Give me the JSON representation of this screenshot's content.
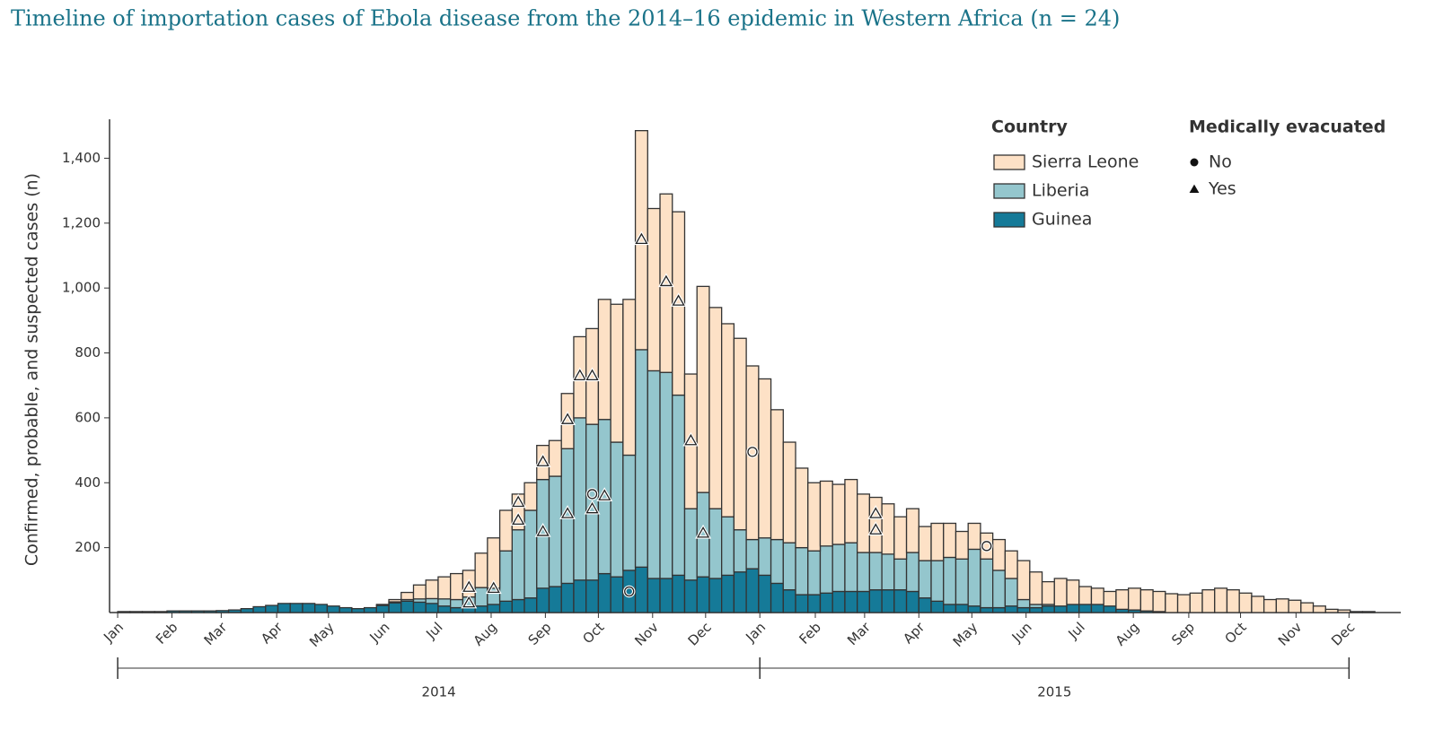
{
  "chart_data": {
    "type": "bar",
    "stacked": true,
    "title": "Timeline of importation cases of Ebola disease from the 2014–16 epidemic in Western Africa (n = 24)",
    "y_label": "Confirmed, probable, and suspected cases (n)",
    "legend_title": "Country",
    "x": [
      1,
      2,
      3,
      4,
      5,
      6,
      7,
      8,
      9,
      10,
      11,
      12,
      13,
      14,
      15,
      16,
      17,
      18,
      19,
      20,
      21,
      22,
      23,
      24,
      25,
      26,
      27,
      28,
      29,
      30,
      31,
      32,
      33,
      34,
      35,
      36,
      37,
      38,
      39,
      40,
      41,
      42,
      43,
      44,
      45,
      46,
      47,
      48,
      49,
      50,
      51,
      52,
      53,
      54,
      55,
      56,
      57,
      58,
      59,
      60,
      61,
      62,
      63,
      64,
      65,
      66,
      67,
      68,
      69,
      70,
      71,
      72,
      73,
      74,
      75,
      76,
      77,
      78,
      79,
      80,
      81,
      82,
      83,
      84,
      85,
      86,
      87,
      88,
      89,
      90,
      91,
      92,
      93,
      94,
      95,
      96,
      97,
      98,
      99,
      100,
      101,
      102
    ],
    "series": [
      {
        "name": "Guinea",
        "color": "#157a98",
        "values": [
          3,
          3,
          3,
          3,
          5,
          5,
          5,
          5,
          6,
          8,
          12,
          18,
          22,
          28,
          28,
          28,
          25,
          20,
          15,
          12,
          15,
          22,
          30,
          35,
          32,
          28,
          20,
          15,
          18,
          20,
          25,
          35,
          40,
          45,
          75,
          80,
          90,
          100,
          100,
          120,
          110,
          130,
          140,
          105,
          105,
          115,
          100,
          110,
          105,
          115,
          125,
          135,
          115,
          90,
          70,
          55,
          55,
          60,
          65,
          65,
          65,
          70,
          70,
          70,
          65,
          45,
          35,
          25,
          25,
          20,
          15,
          15,
          20,
          15,
          15,
          20,
          20,
          25,
          25,
          25,
          20,
          10,
          8,
          5,
          3,
          0,
          0,
          0,
          0,
          0,
          0,
          0,
          0,
          0,
          0,
          0,
          0,
          0,
          0,
          0,
          0,
          0
        ]
      },
      {
        "name": "Liberia",
        "color": "#94c6cd",
        "values": [
          0,
          0,
          0,
          0,
          0,
          0,
          0,
          0,
          0,
          0,
          0,
          0,
          0,
          0,
          0,
          0,
          0,
          0,
          0,
          0,
          0,
          0,
          3,
          5,
          10,
          15,
          22,
          25,
          30,
          57,
          50,
          155,
          215,
          270,
          335,
          340,
          415,
          500,
          480,
          475,
          415,
          355,
          670,
          640,
          635,
          555,
          220,
          260,
          215,
          180,
          130,
          90,
          115,
          135,
          145,
          145,
          135,
          145,
          145,
          150,
          120,
          115,
          110,
          95,
          120,
          115,
          125,
          145,
          140,
          175,
          150,
          115,
          85,
          25,
          10,
          5,
          0,
          0,
          0,
          0,
          0,
          0,
          0,
          0,
          0,
          0,
          0,
          0,
          0,
          0,
          0,
          0,
          0,
          0,
          0,
          0,
          0,
          0,
          0,
          0,
          0,
          0
        ]
      },
      {
        "name": "Sierra Leone",
        "color": "#fde1c6",
        "values": [
          0,
          0,
          0,
          0,
          0,
          0,
          0,
          0,
          0,
          0,
          0,
          0,
          0,
          0,
          0,
          0,
          0,
          0,
          0,
          0,
          0,
          3,
          7,
          22,
          43,
          57,
          68,
          80,
          82,
          106,
          155,
          125,
          110,
          85,
          105,
          110,
          170,
          250,
          295,
          370,
          425,
          480,
          675,
          500,
          550,
          565,
          415,
          635,
          620,
          595,
          590,
          535,
          490,
          400,
          310,
          245,
          210,
          200,
          185,
          195,
          180,
          170,
          155,
          130,
          135,
          105,
          115,
          105,
          85,
          80,
          80,
          95,
          85,
          120,
          100,
          70,
          85,
          75,
          55,
          50,
          45,
          60,
          67,
          65,
          62,
          58,
          55,
          60,
          70,
          75,
          70,
          60,
          50,
          40,
          42,
          38,
          30,
          20,
          10,
          8,
          3,
          3
        ]
      }
    ],
    "markers_title": "Medically evacuated",
    "markers": [
      {
        "name": "No",
        "shape": "circle",
        "x": [
          39,
          42,
          52,
          71
        ],
        "y": [
          365,
          65,
          495,
          205
        ]
      },
      {
        "name": "Yes",
        "shape": "triangle",
        "x": [
          29,
          29,
          31,
          33,
          33,
          35,
          35,
          37,
          37,
          38,
          39,
          39,
          40,
          43,
          45,
          46,
          47,
          48,
          62,
          62
        ],
        "y": [
          78,
          30,
          75,
          340,
          285,
          465,
          250,
          595,
          305,
          730,
          730,
          320,
          360,
          1150,
          1020,
          960,
          530,
          245,
          305,
          255
        ]
      }
    ],
    "years": [
      "2014",
      "2015"
    ],
    "xlim": [
      -0.16,
      104.6
    ],
    "xticks": [
      {
        "value": 0.5,
        "label": "Jan"
      },
      {
        "value": 4.9,
        "label": "Feb"
      },
      {
        "value": 8.9,
        "label": "Mar"
      },
      {
        "value": 13.4,
        "label": "Apr"
      },
      {
        "value": 17.6,
        "label": "May"
      },
      {
        "value": 22.1,
        "label": "Jun"
      },
      {
        "value": 26.4,
        "label": "Jul"
      },
      {
        "value": 30.8,
        "label": "Aug"
      },
      {
        "value": 35.2,
        "label": "Sep"
      },
      {
        "value": 39.5,
        "label": "Oct"
      },
      {
        "value": 43.9,
        "label": "Nov"
      },
      {
        "value": 48.2,
        "label": "Dec"
      },
      {
        "value": 52.6,
        "label": "Jan"
      },
      {
        "value": 57.1,
        "label": "Feb"
      },
      {
        "value": 61.1,
        "label": "Mar"
      },
      {
        "value": 65.5,
        "label": "Apr"
      },
      {
        "value": 69.8,
        "label": "May"
      },
      {
        "value": 74.2,
        "label": "Jun"
      },
      {
        "value": 78.5,
        "label": "Jul"
      },
      {
        "value": 82.9,
        "label": "Aug"
      },
      {
        "value": 87.4,
        "label": "Sep"
      },
      {
        "value": 91.6,
        "label": "Oct"
      },
      {
        "value": 96.1,
        "label": "Nov"
      },
      {
        "value": 100.4,
        "label": "Dec"
      }
    ],
    "ylim": [
      0,
      1520
    ],
    "yticks": [
      200,
      400,
      600,
      800,
      {
        "value": 1000,
        "label": "1,000"
      },
      {
        "value": 1200,
        "label": "1,200"
      },
      {
        "value": 1400,
        "label": "1,400"
      }
    ],
    "grid": false
  }
}
